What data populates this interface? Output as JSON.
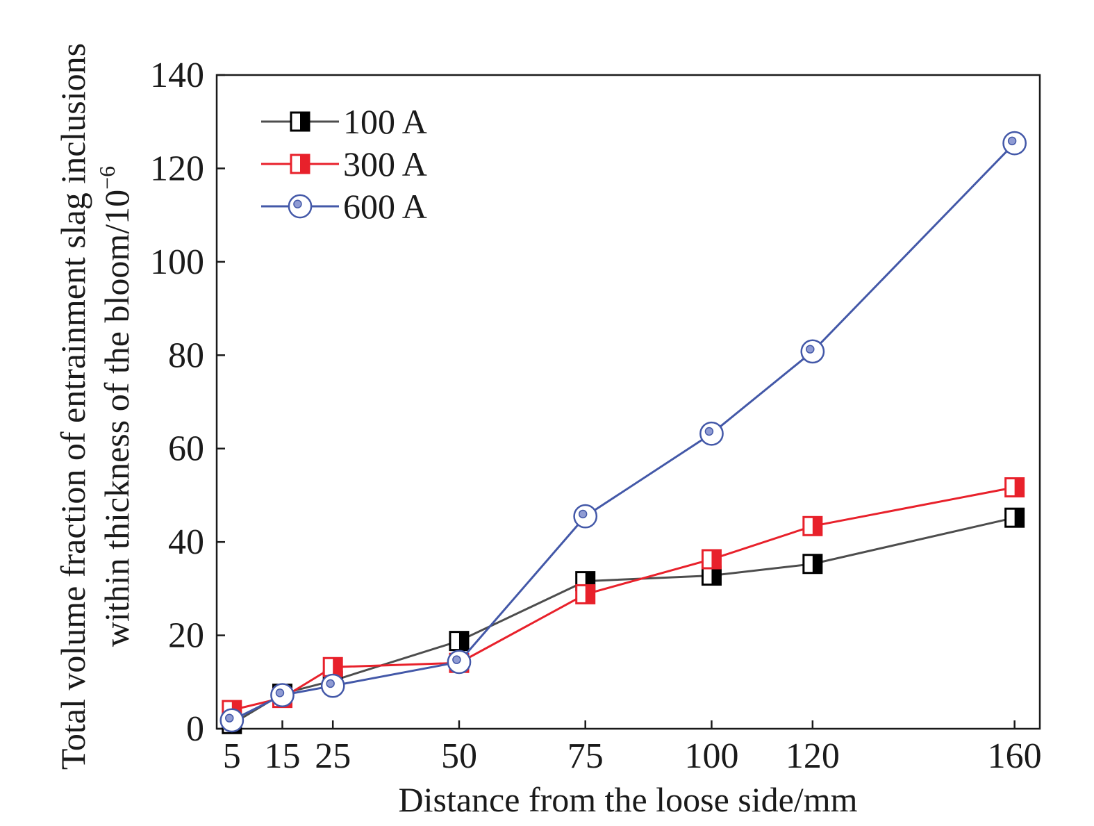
{
  "chart_data": {
    "type": "line",
    "xlabel": "Distance from the loose side/mm",
    "ylabel_line1": "Total volume fraction of entrainment slag inclusions",
    "ylabel_line2": "within thickness of the bloom/10",
    "ylabel_exponent": "−6",
    "x": [
      5,
      15,
      25,
      50,
      75,
      100,
      120,
      160
    ],
    "x_ticks": [
      "5",
      "15",
      "25",
      "50",
      "75",
      "100",
      "120",
      "160"
    ],
    "y_ticks": [
      "0",
      "20",
      "40",
      "60",
      "80",
      "100",
      "120",
      "140"
    ],
    "xlim": [
      2,
      165
    ],
    "ylim": [
      0,
      140
    ],
    "grid": false,
    "legend_position": "top-left",
    "series": [
      {
        "name": "100 A",
        "color": "#4d4d4d",
        "marker": "half-filled-square-black",
        "values": [
          1.0,
          7.5,
          10.3,
          18.8,
          31.6,
          32.8,
          35.3,
          45.2
        ]
      },
      {
        "name": "300 A",
        "color": "#e8212b",
        "marker": "half-filled-square-red",
        "values": [
          4.0,
          6.6,
          13.2,
          14.1,
          28.8,
          36.3,
          43.4,
          51.7
        ]
      },
      {
        "name": "600 A",
        "color": "#4358a8",
        "marker": "dotted-circle-blue",
        "values": [
          1.8,
          7.2,
          9.2,
          14.3,
          45.5,
          63.2,
          80.8,
          125.4
        ]
      }
    ]
  }
}
